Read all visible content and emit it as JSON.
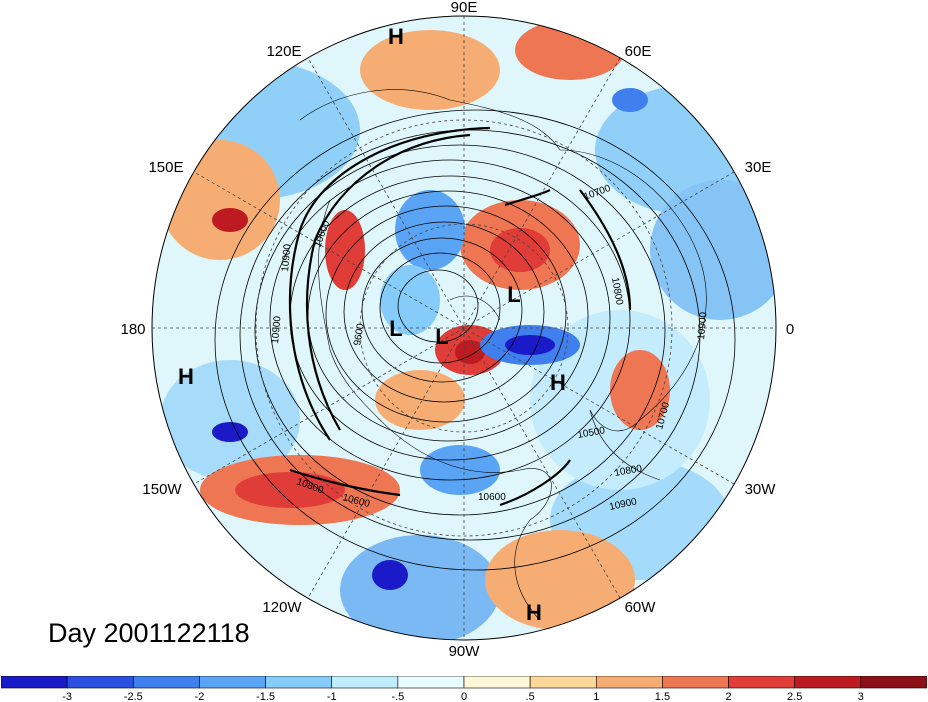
{
  "title": "Day 2001122118",
  "longitude_labels": [
    "90E",
    "60E",
    "30E",
    "0",
    "30W",
    "60W",
    "90W",
    "120W",
    "150W",
    "180",
    "150E",
    "120E"
  ],
  "pressure_centers": [
    "H",
    "H",
    "H",
    "H",
    "L",
    "L",
    "L"
  ],
  "contour_labels": [
    "10600",
    "10900",
    "10900",
    "9600",
    "10700",
    "10800",
    "10900",
    "10500",
    "10700",
    "10800",
    "10900",
    "10600",
    "10600",
    "10800"
  ],
  "colorbar": {
    "labels": [
      "-3",
      "-2.5",
      "-2",
      "-1.5",
      "-1",
      "-.5",
      "0",
      ".5",
      "1",
      "1.5",
      "2",
      "2.5",
      "3"
    ],
    "colors": [
      "#1a1ac8",
      "#2b4fe0",
      "#3f7fee",
      "#5aa4f5",
      "#86ccfa",
      "#c0eefc",
      "#e8fbfd",
      "#fdf7d8",
      "#fbd79a",
      "#f6ad74",
      "#ee7653",
      "#e03c38",
      "#bd1a22",
      "#8e0f18"
    ]
  }
}
